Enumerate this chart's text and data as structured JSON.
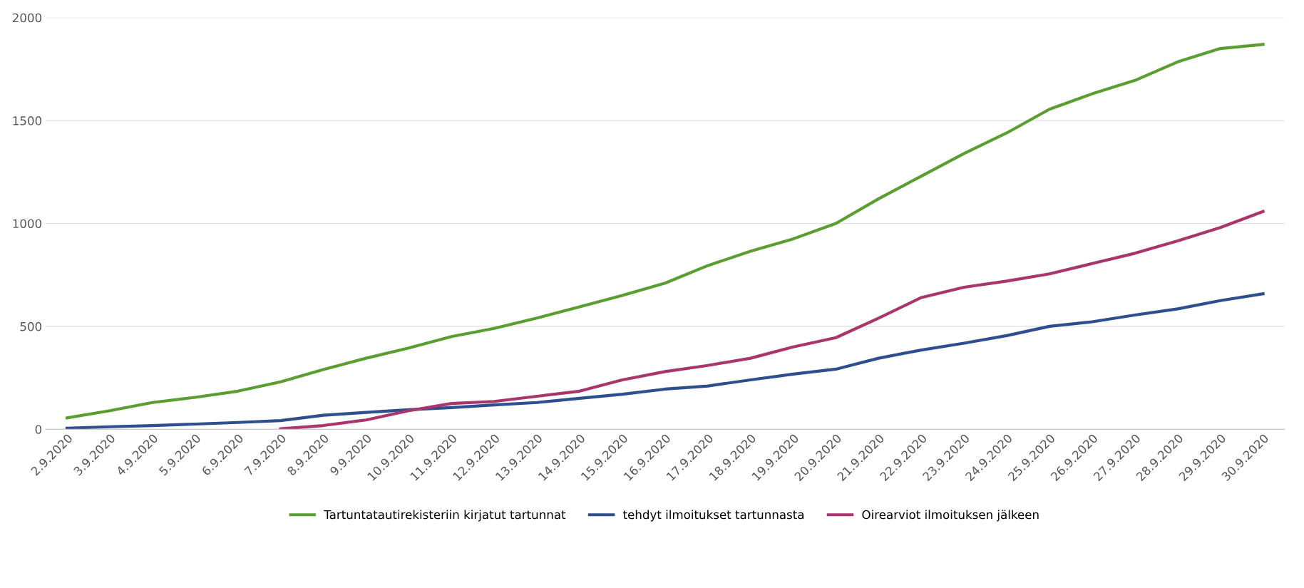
{
  "chart_data": {
    "type": "line",
    "categories": [
      "2.9.2020",
      "3.9.2020",
      "4.9.2020",
      "5.9.2020",
      "6.9.2020",
      "7.9.2020",
      "8.9.2020",
      "9.9.2020",
      "10.9.2020",
      "11.9.2020",
      "12.9.2020",
      "13.9.2020",
      "14.9.2020",
      "15.9.2020",
      "16.9.2020",
      "17.9.2020",
      "18.9.2020",
      "19.9.2020",
      "20.9.2020",
      "21.9.2020",
      "22.9.2020",
      "23.9.2020",
      "24.9.2020",
      "25.9.2020",
      "26.9.2020",
      "27.9.2020",
      "28.9.2020",
      "29.9.2020",
      "30.9.2020"
    ],
    "series": [
      {
        "name": "Tartuntatautirekisteriin kirjatut tartunnat",
        "color": "#5a9e32",
        "values": [
          55,
          90,
          130,
          155,
          185,
          230,
          290,
          345,
          395,
          450,
          490,
          540,
          595,
          650,
          710,
          795,
          865,
          925,
          1000,
          1120,
          1230,
          1340,
          1440,
          1555,
          1630,
          1695,
          1785,
          1850,
          1870
        ]
      },
      {
        "name": "tehdyt ilmoitukset tartunnasta",
        "color": "#2e4f8f",
        "values": [
          5,
          12,
          18,
          25,
          33,
          42,
          68,
          82,
          95,
          105,
          118,
          130,
          150,
          170,
          195,
          210,
          240,
          268,
          292,
          345,
          385,
          418,
          455,
          500,
          522,
          555,
          585,
          625,
          658
        ]
      },
      {
        "name": "Oirearviot ilmoituksen jälkeen",
        "color": "#a8356b",
        "values": [
          null,
          null,
          null,
          null,
          null,
          2,
          18,
          45,
          90,
          125,
          135,
          160,
          185,
          240,
          280,
          310,
          345,
          400,
          445,
          540,
          640,
          690,
          720,
          755,
          805,
          855,
          915,
          980,
          1058
        ]
      }
    ],
    "ylim": [
      0,
      2000
    ],
    "yticks": [
      0,
      500,
      1000,
      1500,
      2000
    ],
    "grid": "y",
    "legend": "bottom",
    "line_style": "solid",
    "marker": "none"
  }
}
